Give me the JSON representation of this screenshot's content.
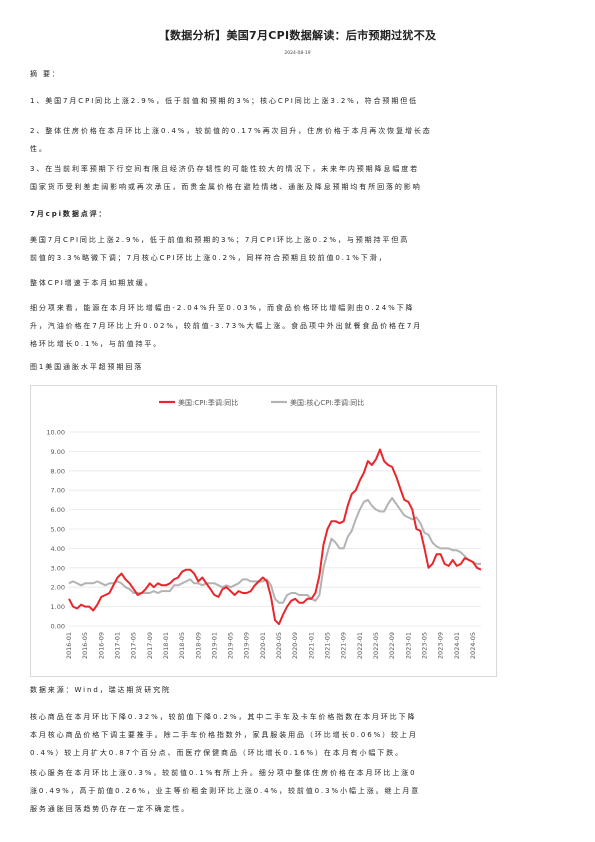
{
  "doc": {
    "title": "【数据分析】美国7月CPI数据解读：后市预期过犹不及",
    "date": "2024-08-19"
  },
  "summary": {
    "heading": "摘 要：",
    "p1": "1、美国7月CPI同比上涨2.9%，低于前值和预期的3%；核心CPI同比上涨3.2%，符合预期但低",
    "p2a": "2、整体住房价格在本月环比上涨0.4%，较前值的0.17%再次回升，住房价格于本月再次恢复增长态",
    "p2b": "性。",
    "p3a": "3、在当前利率预期下行空间有限且经济仍存韧性的可能性较大的情况下，未来年内预期降息幅度若",
    "p3b": "国家货币受利差走阔影响或再次承压，而贵金属价格在避险情绪、通胀及降息预期均有所回落的影响"
  },
  "review": {
    "heading": "7月cpi数据点评：",
    "p1a": "美国7月CPI同比上涨2.9%，低于前值和预期的3%；7月CPI环比上涨0.2%，与预期持平但高",
    "p1b": "前值的3.3%略微下调；7月核心CPI环比上涨0.2%，同样符合预期且较前值0.1%下滑，",
    "p2": "整体CPI增速于本月如期放缓。",
    "p3a": "细分项来看，能源在本月环比增幅由-2.04%升至0.03%，而食品价格环比增幅则由0.24%下降",
    "p3b": "升，汽油价格在7月环比上升0.02%，较前值-3.73%大幅上涨。食品项中外出就餐食品价格在7月",
    "p3c": "格环比增长0.1%，与前值持平。"
  },
  "figure": {
    "caption": "图1美国通胀水平超预期回落",
    "source": "数据来源：Wind，瑞达期货研究院"
  },
  "after": {
    "p1a": "核心商品在本月环比下降0.32%，较前值下降0.2%，其中二手车及卡车价格指数在本月环比下降",
    "p1b": "本月核心商品价格下调主要推手。除二手车价格指数外，家具服装用品（环比增长0.06%）较上月",
    "p1c": "0.4%）较上月扩大0.87个百分点、而医疗保健商品（环比增长0.16%）在本月有小幅下跌。",
    "p2a": "核心服务在本月环比上涨0.3%，较前值0.1%有所上升。细分项中整体住房价格在本月环比上涨0",
    "p2b": "涨0.49%，高于前值0.26%，业主等价租金则环比上涨0.4%，较前值0.3%小幅上涨。继上月意",
    "p2c": "服务通胀回落趋势仍存在一定不确定性。"
  },
  "chart_data": {
    "type": "line",
    "title": "",
    "xlabel": "",
    "ylabel": "",
    "ylim": [
      0,
      10
    ],
    "grid": true,
    "legend": "top",
    "y_ticks": [
      "0.00",
      "1.00",
      "2.00",
      "3.00",
      "4.00",
      "5.00",
      "6.00",
      "7.00",
      "8.00",
      "9.00",
      "10.00"
    ],
    "x_tick_labels": [
      "2016-01",
      "2016-05",
      "2016-09",
      "2017-01",
      "2017-05",
      "2017-09",
      "2018-01",
      "2018-05",
      "2018-09",
      "2019-01",
      "2019-05",
      "2019-09",
      "2020-01",
      "2020-05",
      "2020-09",
      "2021-01",
      "2021-05",
      "2021-09",
      "2022-01",
      "2022-05",
      "2022-09",
      "2023-01",
      "2023-05",
      "2023-09",
      "2024-01",
      "2024-05"
    ],
    "series": [
      {
        "name": "美国:CPI:季调:同比",
        "color": "#e8262b",
        "values": [
          1.4,
          1.0,
          0.9,
          1.1,
          1.0,
          1.0,
          0.8,
          1.1,
          1.5,
          1.6,
          1.7,
          2.1,
          2.5,
          2.7,
          2.4,
          2.2,
          1.9,
          1.6,
          1.7,
          1.9,
          2.2,
          2.0,
          2.2,
          2.1,
          2.1,
          2.2,
          2.4,
          2.5,
          2.8,
          2.9,
          2.9,
          2.7,
          2.3,
          2.5,
          2.2,
          1.9,
          1.6,
          1.5,
          1.9,
          2.0,
          1.8,
          1.6,
          1.8,
          1.7,
          1.7,
          1.8,
          2.1,
          2.3,
          2.5,
          2.3,
          1.5,
          0.3,
          0.1,
          0.6,
          1.0,
          1.3,
          1.4,
          1.2,
          1.2,
          1.4,
          1.4,
          1.7,
          2.6,
          4.2,
          5.0,
          5.4,
          5.4,
          5.3,
          5.4,
          6.2,
          6.8,
          7.0,
          7.5,
          7.9,
          8.5,
          8.3,
          8.6,
          9.1,
          8.5,
          8.3,
          8.2,
          7.7,
          7.1,
          6.5,
          6.4,
          6.0,
          5.0,
          4.9,
          4.0,
          3.0,
          3.2,
          3.7,
          3.7,
          3.2,
          3.1,
          3.4,
          3.1,
          3.2,
          3.5,
          3.4,
          3.3,
          3.0,
          2.9
        ]
      },
      {
        "name": "美国:核心CPI:季调:同比",
        "color": "#b3b3b3",
        "values": [
          2.2,
          2.3,
          2.2,
          2.1,
          2.2,
          2.2,
          2.2,
          2.3,
          2.2,
          2.1,
          2.2,
          2.2,
          2.3,
          2.2,
          2.0,
          1.9,
          1.7,
          1.7,
          1.7,
          1.7,
          1.7,
          1.8,
          1.7,
          1.8,
          1.8,
          1.8,
          2.1,
          2.1,
          2.2,
          2.3,
          2.4,
          2.2,
          2.2,
          2.1,
          2.2,
          2.2,
          2.2,
          2.1,
          2.0,
          2.1,
          2.0,
          2.1,
          2.2,
          2.4,
          2.4,
          2.3,
          2.3,
          2.3,
          2.3,
          2.4,
          2.1,
          1.4,
          1.2,
          1.2,
          1.6,
          1.7,
          1.7,
          1.6,
          1.6,
          1.6,
          1.4,
          1.3,
          1.6,
          3.0,
          3.8,
          4.5,
          4.3,
          4.0,
          4.0,
          4.6,
          4.9,
          5.5,
          6.0,
          6.4,
          6.5,
          6.2,
          6.0,
          5.9,
          5.9,
          6.3,
          6.6,
          6.3,
          6.0,
          5.7,
          5.6,
          5.5,
          5.6,
          5.3,
          4.8,
          4.7,
          4.3,
          4.1,
          4.0,
          4.0,
          4.0,
          3.9,
          3.9,
          3.8,
          3.6,
          3.4,
          3.3,
          3.2,
          3.2
        ]
      }
    ]
  }
}
